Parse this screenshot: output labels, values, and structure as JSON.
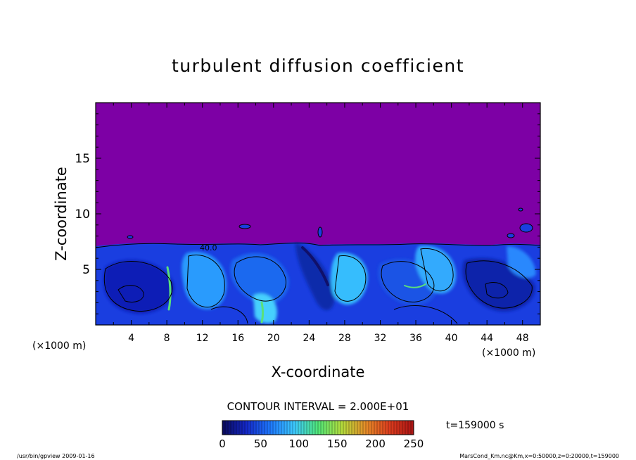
{
  "chart_data": {
    "type": "heatmap",
    "title": "turbulent diffusion coefficient",
    "xlabel": "X-coordinate",
    "ylabel": "Z-coordinate",
    "x_unit_left": "(×1000 m)",
    "x_unit_right": "(×1000 m)",
    "xlim": [
      0,
      50
    ],
    "ylim": [
      0,
      20
    ],
    "x_ticks": [
      "4",
      "8",
      "12",
      "16",
      "20",
      "24",
      "28",
      "32",
      "36",
      "40",
      "44",
      "48"
    ],
    "x_tick_values": [
      4,
      8,
      12,
      16,
      20,
      24,
      28,
      32,
      36,
      40,
      44,
      48
    ],
    "y_ticks": [
      "5",
      "10",
      "15"
    ],
    "y_tick_values": [
      5,
      10,
      15
    ],
    "contour_interval_text": "CONTOUR INTERVAL = 2.000E+01",
    "contour_label": "40.0",
    "colorbar": {
      "min": 0,
      "max": 250,
      "ticks": [
        "0",
        "50",
        "100",
        "150",
        "200",
        "250"
      ],
      "tick_values": [
        0,
        50,
        100,
        150,
        200,
        250
      ],
      "colors": [
        "#0a0a5a",
        "#1428c8",
        "#1e78ff",
        "#3cc8ff",
        "#50e678",
        "#b4dc3c",
        "#e68c28",
        "#dc3c1e",
        "#aa1414"
      ]
    },
    "background_color": "#7d00a5",
    "mixed_layer_top_z": 7.2,
    "time_label": "t=159000 s",
    "footer_left": "/usr/bin/gpview   2009-01-16",
    "footer_right": "MarsCond_Km.nc@Km,x=0:50000,z=0:20000,t=159000"
  }
}
